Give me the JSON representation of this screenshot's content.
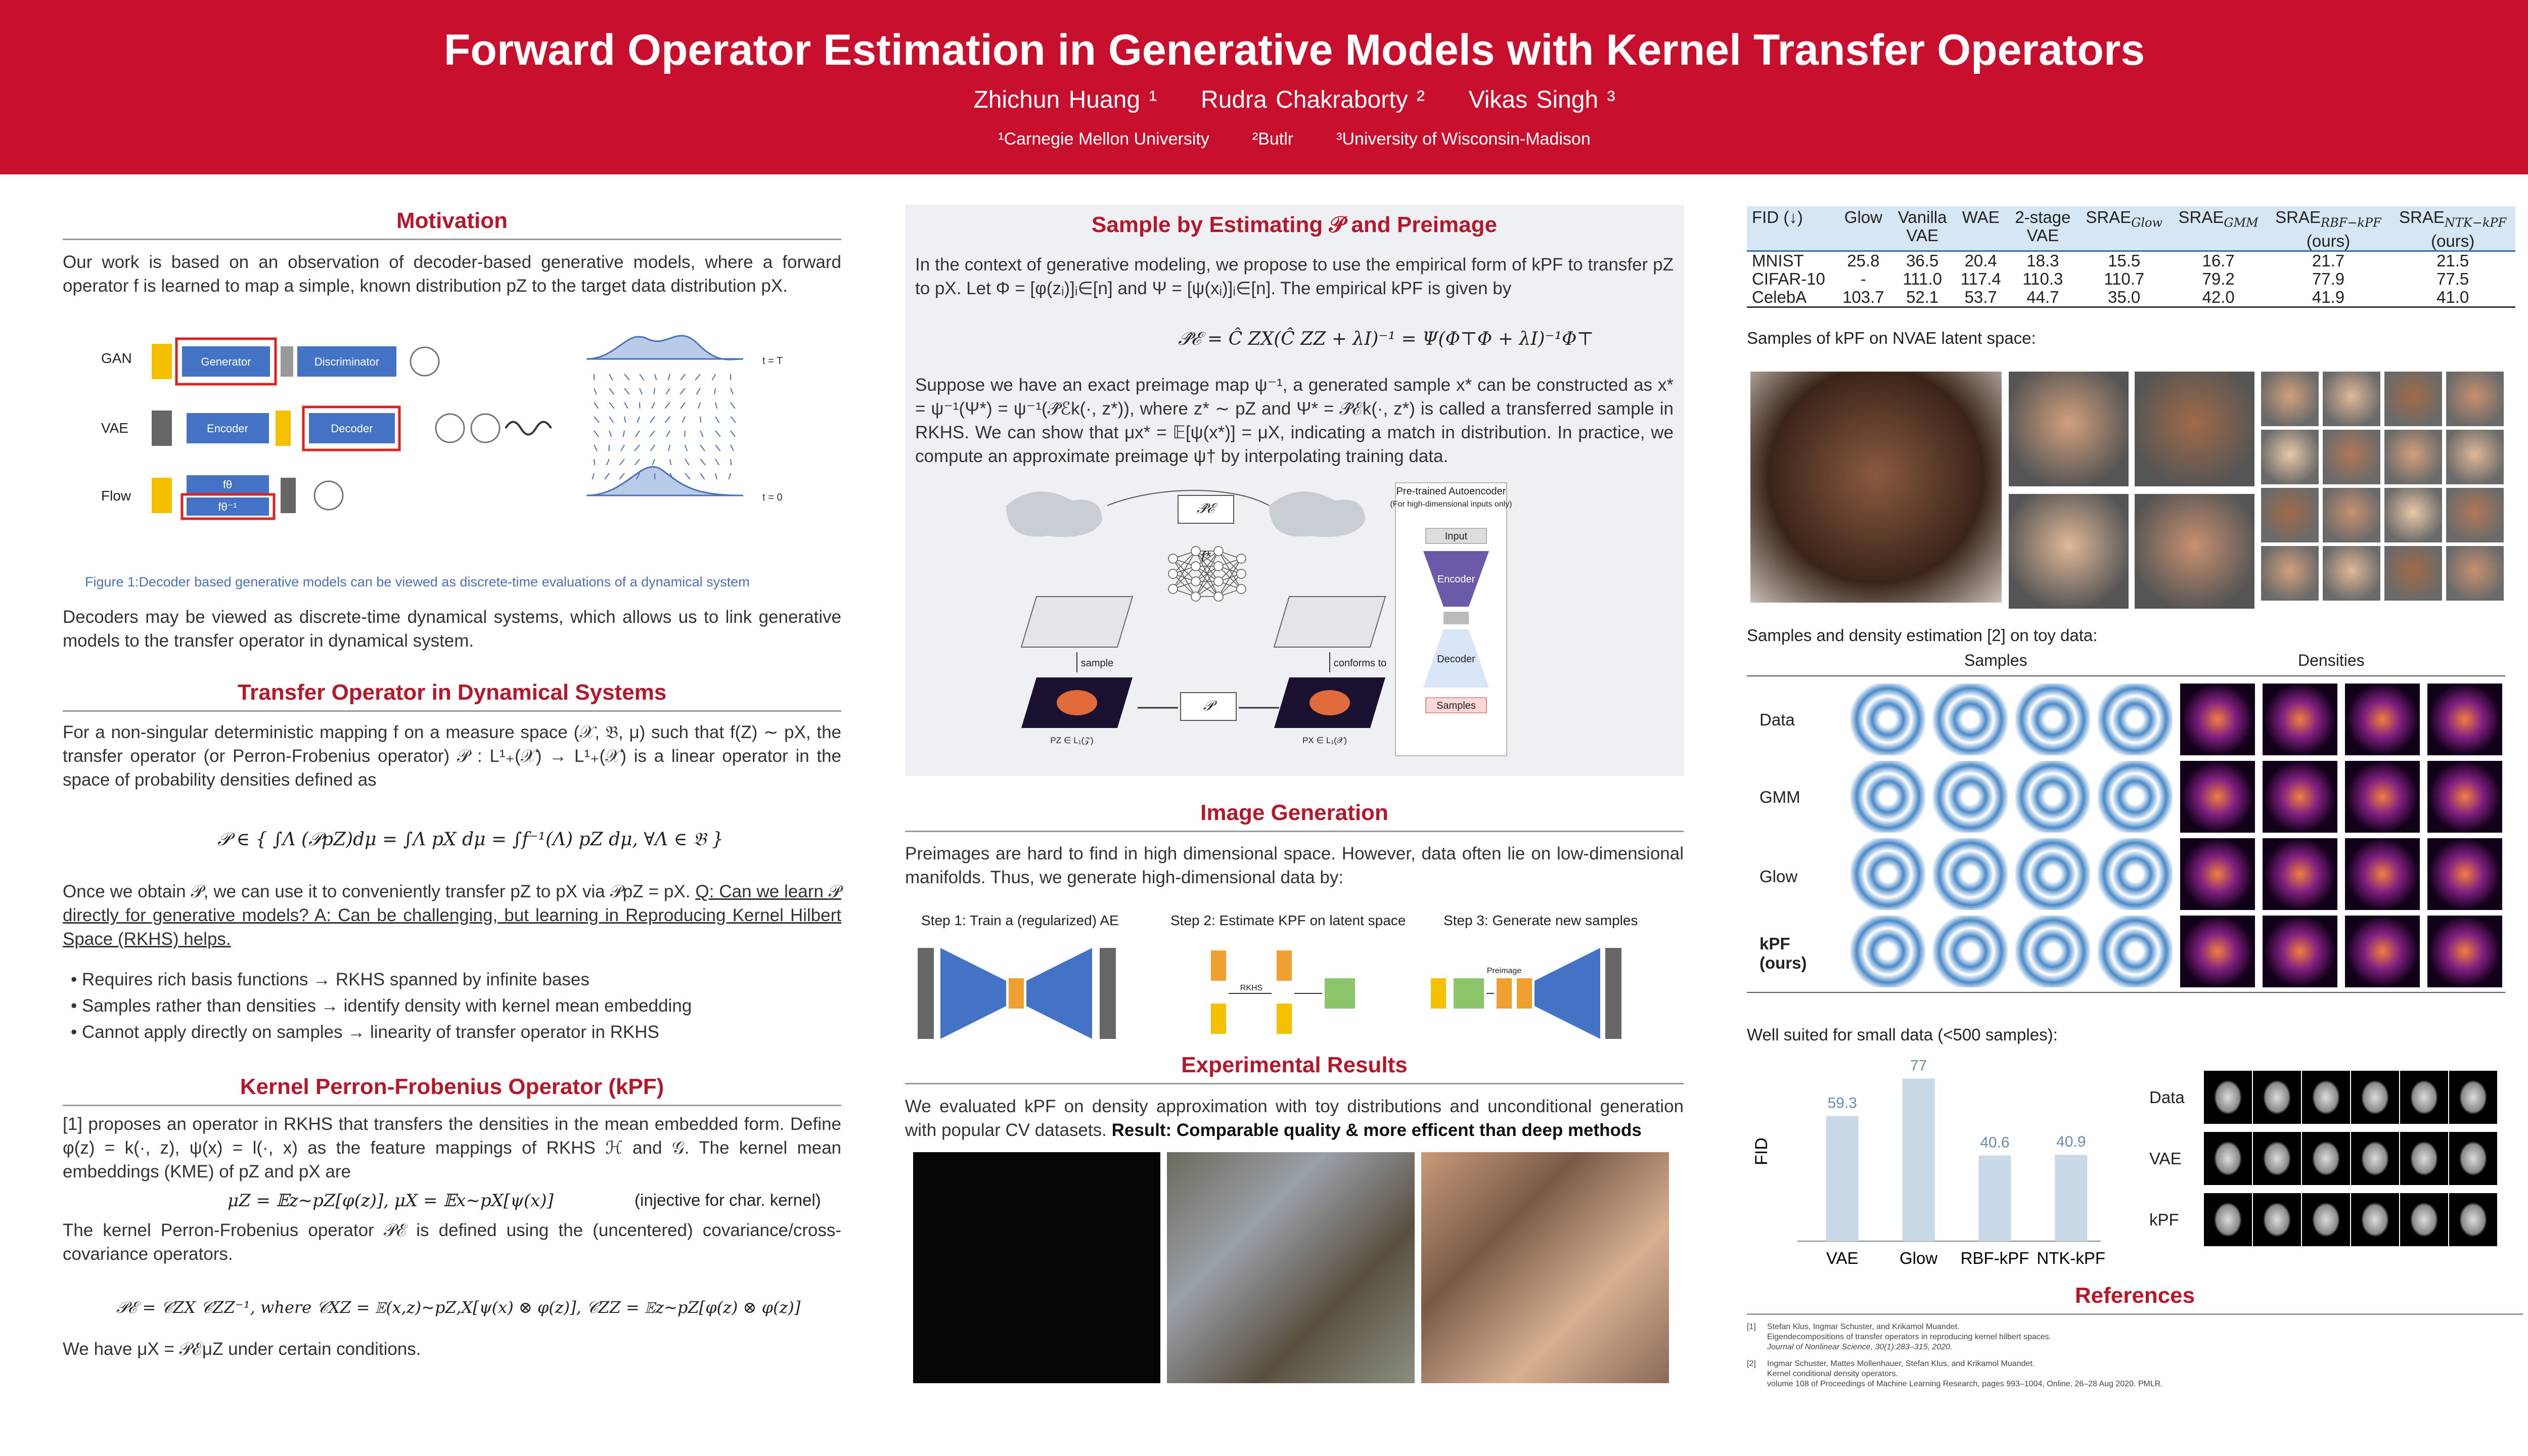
{
  "header": {
    "title": "Forward Operator Estimation in Generative Models with Kernel Transfer Operators",
    "authors": [
      "Zhichun Huang ¹",
      "Rudra Chakraborty ²",
      "Vikas Singh ³"
    ],
    "affiliations": [
      "¹Carnegie Mellon University",
      "²Butlr",
      "³University of Wisconsin-Madison"
    ]
  },
  "motivation": {
    "heading": "Motivation",
    "paragraph": "Our work is based on an observation of decoder-based generative models, where a forward operator f is learned to map a simple, known distribution pZ to the target data distribution pX.",
    "figure": {
      "rows": [
        "GAN",
        "VAE",
        "Flow"
      ],
      "boxes": [
        "Generator",
        "Discriminator",
        "Encoder",
        "Decoder",
        "fθ",
        "fθ⁻¹"
      ],
      "times": [
        "t = T",
        "t = 0"
      ]
    },
    "caption": "Figure 1:Decoder based generative models can be viewed as discrete-time evaluations of a dynamical system",
    "paragraph2": "Decoders may be viewed as discrete-time dynamical systems, which allows us to link generative models to the transfer operator in dynamical system."
  },
  "transfer": {
    "heading": "Transfer Operator in Dynamical Systems",
    "paragraph": "For a non-singular deterministic mapping f on a measure space (𝒳, 𝔅, μ) such that f(Z) ∼ pX, the transfer operator (or Perron-Frobenius operator) 𝒫 : L¹₊(𝒳) → L¹₊(𝒳) is a linear operator in the space of probability densities defined as",
    "equation": "𝒫 ∈ { ∫Λ (𝒫pZ)dμ = ∫Λ pX dμ = ∫f⁻¹(Λ) pZ dμ,    ∀Λ ∈ 𝔅 }",
    "paragraph2": "Once we obtain 𝒫, we can use it to conveniently transfer pZ to pX via 𝒫pZ = pX.",
    "question": "Q: Can we learn 𝒫 directly for generative models? A: Can be challenging, but learning in Reproducing Kernel Hilbert Space (RKHS) helps.",
    "bullets": [
      "Requires rich basis functions → RKHS spanned by infinite bases",
      "Samples rather than densities → identify density with kernel mean embedding",
      "Cannot apply directly on samples → linearity of transfer operator in RKHS"
    ]
  },
  "kpf": {
    "heading": "Kernel Perron-Frobenius Operator (kPF)",
    "paragraph": "[1] proposes an operator in RKHS that transfers the densities in the mean embedded form. Define φ(z) = k(·, z), ψ(x) = l(·, x) as the feature mappings of RKHS ℋ and 𝒢. The kernel mean embeddings (KME) of pZ and pX are",
    "equation1": "μZ = 𝔼z∼pZ[φ(z)],    μX = 𝔼x∼pX[ψ(x)]",
    "note1": "(injective for char. kernel)",
    "paragraph2": "The kernel Perron-Frobenius operator 𝒫ℰ is defined using the (uncentered) covariance/cross-covariance operators.",
    "equation2": "𝒫ℰ = 𝒞ZX 𝒞ZZ⁻¹,    where 𝒞XZ = 𝔼(x,z)∼pZ,X[ψ(x) ⊗ φ(z)], 𝒞ZZ = 𝔼z∼pZ[φ(z) ⊗ φ(z)]",
    "paragraph3": "We have μX = 𝒫ℰμZ under certain conditions."
  },
  "sample": {
    "heading": "Sample by Estimating 𝒫 and Preimage",
    "paragraph": "In the context of generative modeling, we propose to use the empirical form of kPF to transfer pZ to pX. Let Φ = [φ(zᵢ)]ᵢ∈[n] and Ψ = [ψ(xᵢ)]ᵢ∈[n]. The empirical kPF is given by",
    "equation": "𝒫̂ℰ = Ĉ ZX(Ĉ ZZ + λI)⁻¹ = Ψ(Φ⊤Φ + λI)⁻¹Φ⊤",
    "paragraph2": "Suppose we have an exact preimage map ψ⁻¹, a generated sample x* can be constructed as x* = ψ⁻¹(Ψ*) = ψ⁻¹(𝒫̂ℰk(·, z*)), where z* ∼ pZ and Ψ* = 𝒫̂ℰk(·, z*) is called a transferred sample in RKHS. We can show that μx* = 𝔼[ψ(x*)] = μX, indicating a match in distribution. In practice, we compute an approximate preimage ψ† by interpolating training data.",
    "diagram": {
      "autoencoder": "Pre-trained Autoencoder",
      "autoencoder_note": "(For high-dimensional inputs only)",
      "input": "Input",
      "encoder": "Encoder",
      "decoder": "Decoder",
      "samples": "Samples",
      "sample": "sample",
      "conforms": "conforms to",
      "operator": "𝒫",
      "kpf": "𝒫̂ℰ",
      "fstar": "f*",
      "pz": "PZ ∈ L₁(𝒵)",
      "px": "PX ∈ L₁(𝒳)"
    }
  },
  "generation": {
    "heading": "Image Generation",
    "paragraph": "Preimages are hard to find in high dimensional space. However, data often lie on low-dimensional manifolds. Thus, we generate high-dimensional data by:",
    "steps": [
      "Step 1: Train a (regularized) AE",
      "Step 2: Estimate KPF on latent space",
      "Step 3: Generate new samples"
    ],
    "diagram": {
      "rkhs": "RKHS",
      "preimage": "Preimage"
    }
  },
  "results": {
    "heading": "Experimental Results",
    "paragraph": "We evaluated kPF on density approximation with toy distributions and unconditional generation with popular CV datasets.",
    "result": "Result: Comparable quality & more efficent than deep methods"
  },
  "table": {
    "header": [
      {
        "text": "FID (↓)"
      },
      {
        "text": "Glow"
      },
      {
        "text": "Vanilla",
        "note": "VAE"
      },
      {
        "text": "WAE"
      },
      {
        "text": "2-stage",
        "note": "VAE"
      },
      {
        "text": "SRAE",
        "sub": "Glow"
      },
      {
        "text": "SRAE",
        "sub": "GMM"
      },
      {
        "text": "SRAE",
        "sub": "RBF−kPF",
        "note": "(ours)"
      },
      {
        "text": "SRAE",
        "sub": "NTK−kPF",
        "note": "(ours)"
      }
    ],
    "rows": [
      [
        "MNIST",
        "25.8",
        "36.5",
        "20.4",
        "18.3",
        "15.5",
        "16.7",
        "21.7",
        "21.5"
      ],
      [
        "CIFAR-10",
        "-",
        "111.0",
        "117.4",
        "110.3",
        "110.7",
        "79.2",
        "77.9",
        "77.5"
      ],
      [
        "CelebA",
        "103.7",
        "52.1",
        "53.7",
        "44.7",
        "35.0",
        "42.0",
        "41.9",
        "41.0"
      ]
    ]
  },
  "nvae": {
    "title": "Samples of kPF on NVAE latent space:"
  },
  "toy": {
    "title": "Samples and density estimation [2] on toy data:",
    "columns": [
      "Samples",
      "Densities"
    ],
    "rows": [
      "Data",
      "GMM",
      "Glow",
      "kPF (ours)"
    ]
  },
  "small": {
    "title": "Well suited for small data (<500 samples):",
    "rows": [
      "Data",
      "VAE",
      "kPF"
    ]
  },
  "chart_data": {
    "type": "bar",
    "ylabel": "FID",
    "categories": [
      "VAE",
      "Glow",
      "RBF-kPF",
      "NTK-kPF"
    ],
    "values": [
      59.3,
      77,
      40.6,
      40.9
    ],
    "ylim": [
      0,
      85
    ],
    "color": "#c9d9e8",
    "label_color": "#6a8caf"
  },
  "references": {
    "heading": "References",
    "items": [
      {
        "number": "[1]",
        "authors": "Stefan Klus, Ingmar Schuster, and Krikamol Muandet.",
        "title": "Eigendecompositions of transfer operators in reproducing kernel hilbert spaces.",
        "venue": "Journal of Nonlinear Science, 30(1):283–315, 2020."
      },
      {
        "number": "[2]",
        "authors": "Ingmar Schuster, Mattes Mollenhauer, Stefan Klus, and Krikamol Muandet.",
        "title": "Kernel conditional density operators.",
        "venue": "volume 108 of Proceedings of Machine Learning Research, pages 993–1004, Online, 26–28 Aug 2020. PMLR."
      }
    ]
  }
}
